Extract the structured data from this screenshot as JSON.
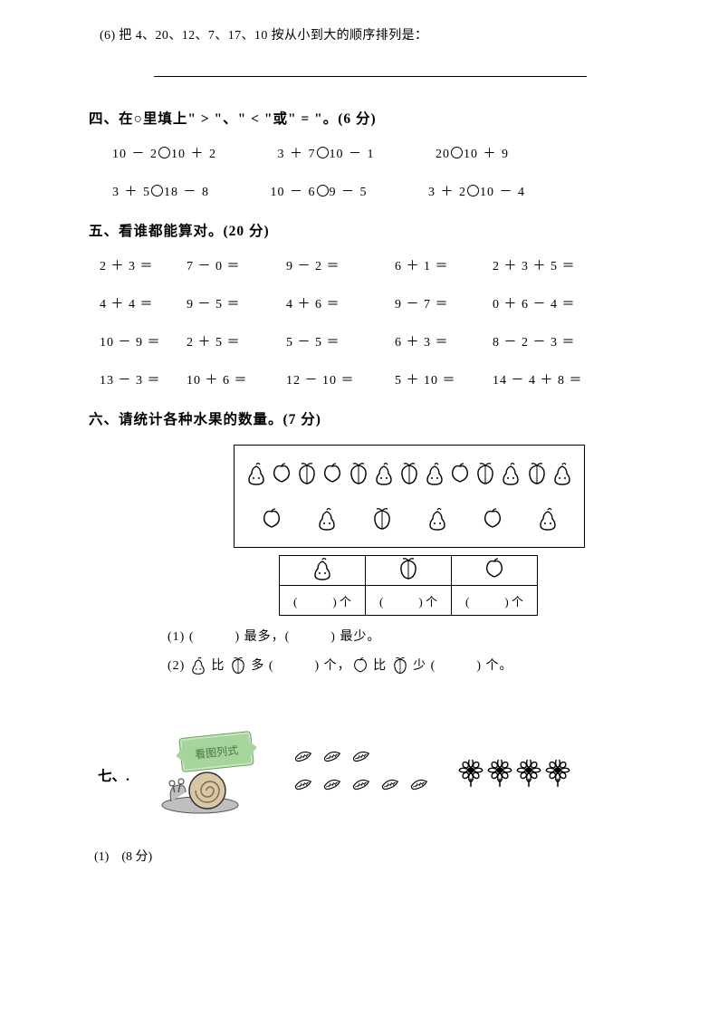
{
  "q3_6": {
    "text": "(6) 把 4、20、12、7、17、10 按从小到大的顺序排列是："
  },
  "section4": {
    "title": "四、在○里填上\" > \"、\" < \"或\" = \"。(6 分)",
    "row1": {
      "a": "10 － 2",
      "b": "10 ＋ 2",
      "c": "3 ＋ 7",
      "d": "10 － 1",
      "e": "20",
      "f": "10 ＋ 9"
    },
    "row2": {
      "a": "3 ＋ 5",
      "b": "18 － 8",
      "c": "10 － 6",
      "d": "9 － 5",
      "e": "3 ＋ 2",
      "f": "10 － 4"
    }
  },
  "section5": {
    "title": "五、看谁都能算对。(20 分)",
    "rows": [
      [
        "2 ＋ 3 ＝",
        "7 － 0 ＝",
        "9 － 2 ＝",
        "6 ＋ 1 ＝",
        "2 ＋ 3 ＋ 5 ＝"
      ],
      [
        "4 ＋ 4 ＝",
        "9 － 5 ＝",
        "4 ＋ 6 ＝",
        "9 － 7 ＝",
        "0 ＋ 6 － 4 ＝"
      ],
      [
        "10 － 9 ＝",
        "2 ＋ 5 ＝",
        "5 － 5 ＝",
        "6 ＋ 3 ＝",
        "8 － 2 － 3 ＝"
      ],
      [
        "13 － 3 ＝",
        "10 ＋ 6 ＝",
        "12 － 10 ＝",
        "5 ＋ 10 ＝",
        "14 － 4 ＋ 8 ＝"
      ]
    ]
  },
  "section6": {
    "title": "六、请统计各种水果的数量。(7 分)",
    "fruits_layout": [
      "pear",
      "apple",
      "peach",
      "apple",
      "peach",
      "pear",
      "peach",
      "pear",
      "apple",
      "peach",
      "pear",
      "peach",
      "pear",
      "apple",
      "pear",
      "peach",
      "pear",
      "apple",
      "pear"
    ],
    "tally_header_icons": [
      "pear",
      "peach",
      "apple"
    ],
    "cell_text": "(　　　) 个",
    "sub1": "(1) (　　　) 最多，(　　　) 最少。",
    "sub2_a": "(2) ",
    "sub2_b": " 比 ",
    "sub2_c": " 多 (　　　) 个，",
    "sub2_d": " 比 ",
    "sub2_e": " 少 (　　　) 个。"
  },
  "section7": {
    "label": "七、.",
    "sign_text": "看图列式",
    "leaves": {
      "row1": 3,
      "row2": 5
    },
    "flowers": {
      "row1": 4
    },
    "sub1": "(1)　(8 分)"
  },
  "colors": {
    "text": "#000000",
    "background": "#ffffff",
    "sign_fill": "#a6d49b",
    "sign_border": "#6aa25f",
    "sign_text": "#49734a"
  }
}
